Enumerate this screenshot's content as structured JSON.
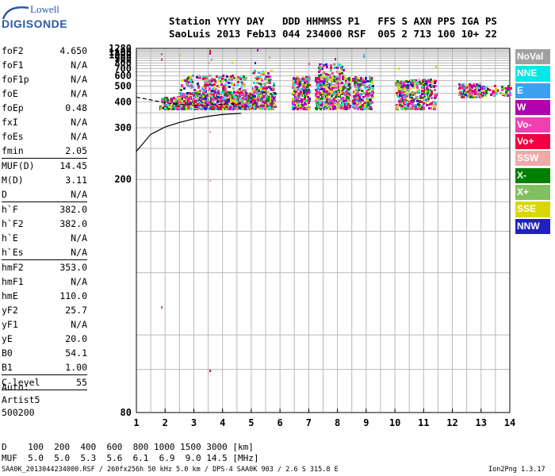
{
  "logo": {
    "line1": "Lowell",
    "line2": "DIGISONDE"
  },
  "header": {
    "labels_row": "Station YYYY DAY   DDD HHMMSS P1   FFS S AXN PPS IGA PS",
    "values_row": "SaoLuis 2013 Feb13 044 234000 RSF  005 2 713 100 10+ 22"
  },
  "params": [
    {
      "name": "foF2",
      "value": "4.650"
    },
    {
      "name": "foF1",
      "value": "N/A"
    },
    {
      "name": "foF1p",
      "value": "N/A"
    },
    {
      "name": "foE",
      "value": "N/A"
    },
    {
      "name": "foEp",
      "value": "0.48"
    },
    {
      "name": "fxI",
      "value": "N/A"
    },
    {
      "name": "foEs",
      "value": "N/A"
    },
    {
      "name": "fmin",
      "value": "2.05"
    },
    {
      "name": "MUF(D)",
      "value": "14.45"
    },
    {
      "name": "M(D)",
      "value": "3.11"
    },
    {
      "name": "D",
      "value": "N/A"
    },
    {
      "name": "h`F",
      "value": "382.0"
    },
    {
      "name": "h`F2",
      "value": "382.0"
    },
    {
      "name": "h`E",
      "value": "N/A"
    },
    {
      "name": "h`Es",
      "value": "N/A"
    },
    {
      "name": "hmF2",
      "value": "353.0"
    },
    {
      "name": "hmF1",
      "value": "N/A"
    },
    {
      "name": "hmE",
      "value": "110.0"
    },
    {
      "name": "yF2",
      "value": "25.7"
    },
    {
      "name": "yF1",
      "value": "N/A"
    },
    {
      "name": "yE",
      "value": "20.0"
    },
    {
      "name": "B0",
      "value": "54.1"
    },
    {
      "name": "B1",
      "value": "1.00"
    },
    {
      "name": "C-level",
      "value": "55"
    }
  ],
  "auto_block": [
    "Auto:",
    "Artist5",
    "500200"
  ],
  "legend": [
    {
      "label": "NoVal",
      "color": "#a0a0a0"
    },
    {
      "label": "NNE",
      "color": "#00e8e8"
    },
    {
      "label": "E",
      "color": "#3ca0f0"
    },
    {
      "label": "W",
      "color": "#b000b0"
    },
    {
      "label": "Vo-",
      "color": "#f040b0"
    },
    {
      "label": "Vo+",
      "color": "#f00040"
    },
    {
      "label": "SSW",
      "color": "#f0a8a8"
    },
    {
      "label": "X-",
      "color": "#008000"
    },
    {
      "label": "X+",
      "color": "#80c060"
    },
    {
      "label": "SSE",
      "color": "#d8d800"
    },
    {
      "label": "NNW",
      "color": "#2020c0"
    }
  ],
  "footer": {
    "d_row": "D    100  200  400  600  800 1000 1500 3000 [km]",
    "muf_row": "MUF  5.0  5.0  5.3  5.6  6.1  6.9  9.0 14.5 [MHz]",
    "info": "SAA0K_2013044234000.RSF / 260fx256h 50 kHz 5.0 km / DPS-4 SAA0K 903 / 2.6 S 315.8 E",
    "version": "Ion2Png 1.3.17"
  },
  "chart_data": {
    "type": "scatter",
    "xlim": [
      1,
      14
    ],
    "ylim": [
      80,
      1280
    ],
    "y_scale": "reciprocal",
    "x_ticks": [
      "1",
      "2",
      "3",
      "4",
      "5",
      "6",
      "7",
      "8",
      "9",
      "10",
      "11",
      "12",
      "13",
      "14"
    ],
    "y_ticks": [
      "80",
      "200",
      "300",
      "400",
      "500",
      "600",
      "700",
      "800",
      "900",
      "1000",
      "1100",
      "1280"
    ],
    "x_tick_values": [
      1,
      2,
      3,
      4,
      5,
      6,
      7,
      8,
      9,
      10,
      11,
      12,
      13,
      14
    ],
    "y_tick_values": [
      80,
      200,
      300,
      400,
      500,
      600,
      700,
      800,
      900,
      1000,
      1100,
      1280
    ],
    "grid": true,
    "clusters": [
      {
        "x": [
          1.8,
          2.4
        ],
        "y": [
          370,
          430
        ],
        "density": 120
      },
      {
        "x": [
          2.4,
          5.0
        ],
        "y": [
          370,
          460
        ],
        "density": 700
      },
      {
        "x": [
          2.5,
          4.8
        ],
        "y": [
          460,
          620
        ],
        "density": 180
      },
      {
        "x": [
          5.0,
          5.8
        ],
        "y": [
          370,
          480
        ],
        "density": 220
      },
      {
        "x": [
          5.0,
          5.8
        ],
        "y": [
          480,
          690
        ],
        "density": 70
      },
      {
        "x": [
          6.4,
          7.0
        ],
        "y": [
          370,
          600
        ],
        "density": 230
      },
      {
        "x": [
          7.2,
          8.4
        ],
        "y": [
          370,
          600
        ],
        "density": 420
      },
      {
        "x": [
          7.3,
          8.2
        ],
        "y": [
          600,
          800
        ],
        "density": 50
      },
      {
        "x": [
          8.5,
          9.2
        ],
        "y": [
          370,
          600
        ],
        "density": 220
      },
      {
        "x": [
          10.0,
          11.4
        ],
        "y": [
          370,
          570
        ],
        "density": 380
      },
      {
        "x": [
          12.2,
          13.0
        ],
        "y": [
          430,
          530
        ],
        "density": 130
      },
      {
        "x": [
          13.0,
          14.0
        ],
        "y": [
          440,
          510
        ],
        "density": 60
      }
    ],
    "outliers": [
      {
        "x": 1.85,
        "y": 1080
      },
      {
        "x": 1.85,
        "y": 930
      },
      {
        "x": 1.85,
        "y": 900
      },
      {
        "x": 2.5,
        "y": 1030
      },
      {
        "x": 3.55,
        "y": 1250
      },
      {
        "x": 3.55,
        "y": 1200
      },
      {
        "x": 3.55,
        "y": 1110
      },
      {
        "x": 3.6,
        "y": 890
      },
      {
        "x": 3.5,
        "y": 820
      },
      {
        "x": 4.3,
        "y": 820
      },
      {
        "x": 5.2,
        "y": 1230
      },
      {
        "x": 5.1,
        "y": 830
      },
      {
        "x": 5.6,
        "y": 960
      },
      {
        "x": 7.0,
        "y": 800
      },
      {
        "x": 7.9,
        "y": 910
      },
      {
        "x": 8.9,
        "y": 1050
      },
      {
        "x": 8.9,
        "y": 980
      },
      {
        "x": 10.1,
        "y": 720
      },
      {
        "x": 11.4,
        "y": 750
      },
      {
        "x": 3.55,
        "y": 290
      },
      {
        "x": 3.55,
        "y": 200
      },
      {
        "x": 1.85,
        "y": 110
      },
      {
        "x": 3.55,
        "y": 90
      }
    ],
    "trace_solid": [
      {
        "x": 1.0,
        "y": 244
      },
      {
        "x": 1.5,
        "y": 282
      },
      {
        "x": 2.0,
        "y": 302
      },
      {
        "x": 2.5,
        "y": 316
      },
      {
        "x": 3.0,
        "y": 328
      },
      {
        "x": 3.5,
        "y": 337
      },
      {
        "x": 4.0,
        "y": 344
      },
      {
        "x": 4.65,
        "y": 348
      }
    ],
    "trace_dashed": [
      {
        "x": 1.0,
        "y": 425
      },
      {
        "x": 1.5,
        "y": 410
      },
      {
        "x": 2.0,
        "y": 395
      },
      {
        "x": 2.5,
        "y": 388
      },
      {
        "x": 3.0,
        "y": 383
      },
      {
        "x": 3.5,
        "y": 383
      },
      {
        "x": 4.0,
        "y": 388
      },
      {
        "x": 4.5,
        "y": 392
      },
      {
        "x": 4.65,
        "y": 394
      }
    ]
  }
}
